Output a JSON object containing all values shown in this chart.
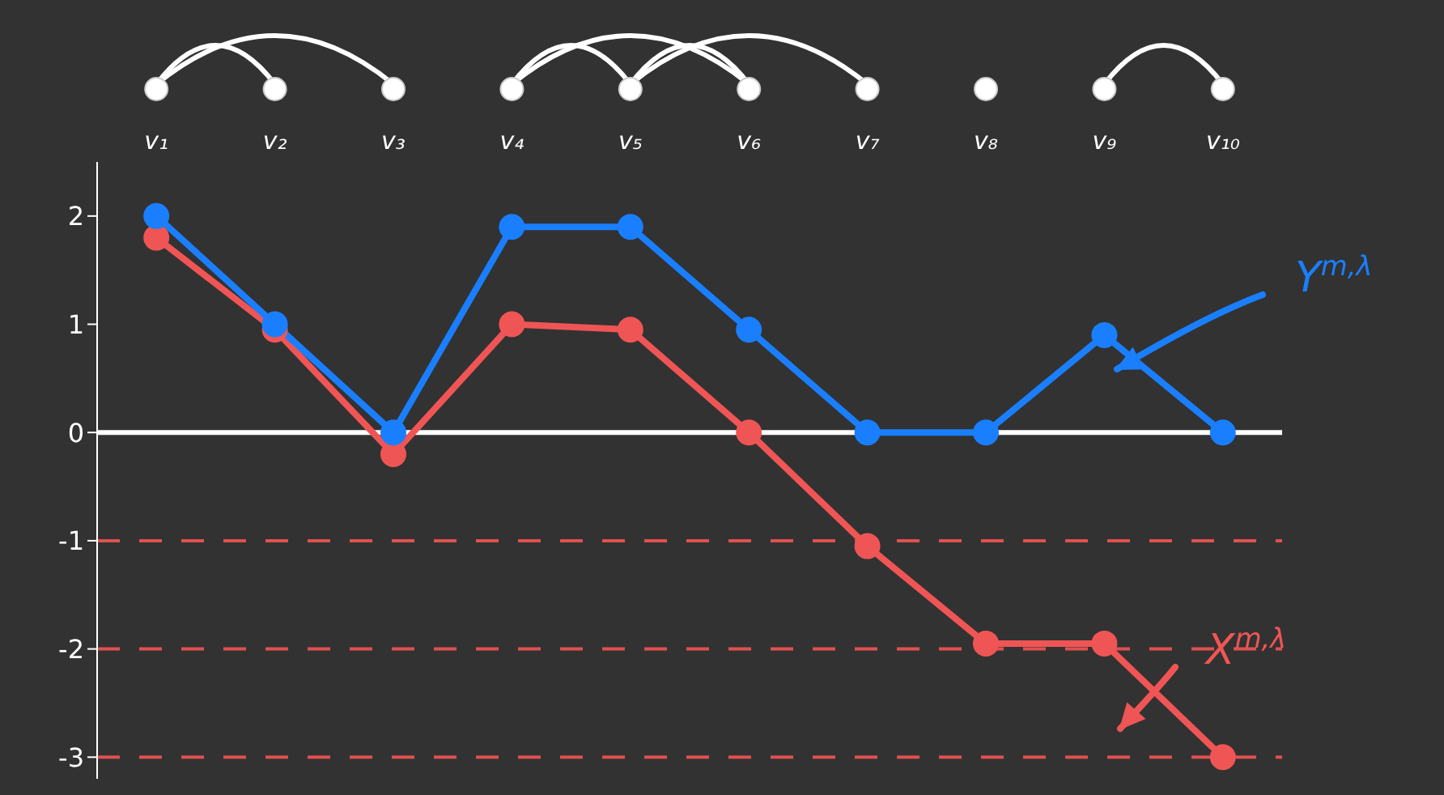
{
  "chart_data": {
    "type": "line",
    "categories": [
      "v₁",
      "v₂",
      "v₃",
      "v₄",
      "v₅",
      "v₆",
      "v₇",
      "v₈",
      "v₉",
      "v₁₀"
    ],
    "series": [
      {
        "name": "Y$^{m,λ}$",
        "color": "#1a7fff",
        "values": [
          2,
          1,
          0,
          1.9,
          1.9,
          0.95,
          0,
          0,
          0.9,
          0
        ]
      },
      {
        "name": "X$^{m,λ}$",
        "color": "#f05555",
        "values": [
          1.8,
          0.95,
          -0.2,
          1,
          0.95,
          0,
          -1.05,
          -1.95,
          -1.95,
          -3
        ]
      }
    ],
    "ylim": [
      -3.2,
      2.5
    ],
    "yticks": [
      -3,
      -2,
      -1,
      0,
      1,
      2
    ],
    "ref_lines": [
      {
        "axis": "y",
        "value": 0,
        "color": "#ffffff",
        "line_style": "solid"
      },
      {
        "axis": "y",
        "value": -1,
        "color": "#e05050",
        "line_style": "dashed"
      },
      {
        "axis": "y",
        "value": -2,
        "color": "#e05050",
        "line_style": "dashed"
      },
      {
        "axis": "y",
        "value": -3,
        "color": "#e05050",
        "line_style": "dashed"
      }
    ],
    "marker": "circle",
    "line_style": "solid",
    "grid": false
  }
}
